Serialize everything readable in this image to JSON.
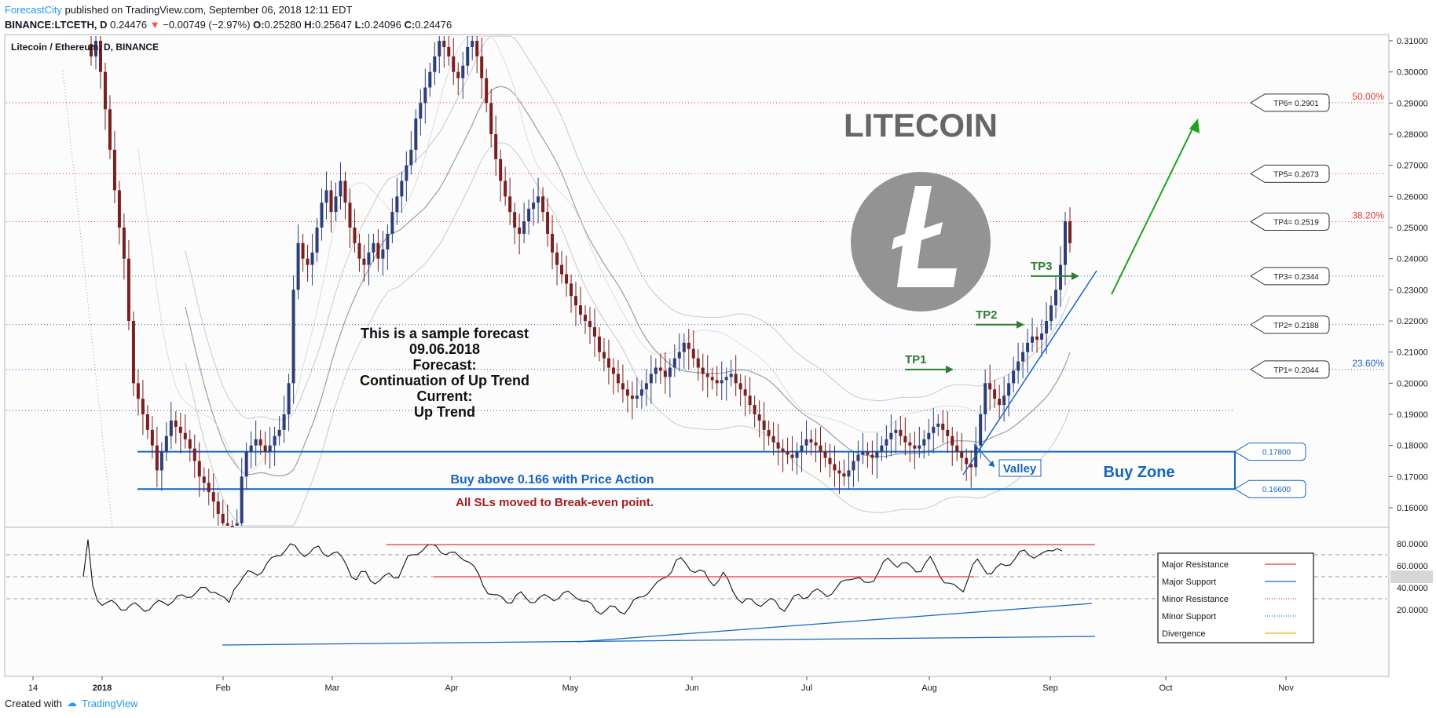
{
  "header": {
    "brand": "ForecastCity",
    "published": " published on TradingView.com, September 06, 2018 12:11 EDT",
    "symbol": "BINANCE:LTCETH, D",
    "last": "0.24476",
    "change": "−0.00749 (−2.97%)",
    "o_label": "O:",
    "o": "0.25280",
    "h_label": "H:",
    "h": "0.25647",
    "l_label": "L:",
    "l": "0.24096",
    "c_label": "C:",
    "c": "0.24476"
  },
  "footer": {
    "created": "Created with",
    "brand": "TradingView"
  },
  "colors": {
    "bull": "#2c3e7a",
    "bear": "#7a1f1f",
    "resistance": "#e53935",
    "support": "#1565c0",
    "green": "#2e7d32",
    "buyzone": "#1565c0",
    "sl": "#a31d1d",
    "fib": "#e53935"
  },
  "chart_data": {
    "type": "candlestick",
    "title": "Litecoin / Ethereum, D, BINANCE",
    "watermark": "LITECOIN",
    "ylim": [
      0.15,
      0.312
    ],
    "y_ticks": [
      "0.31000",
      "0.30000",
      "0.29000",
      "0.28000",
      "0.27000",
      "0.26000",
      "0.25000",
      "0.24000",
      "0.23000",
      "0.22000",
      "0.21000",
      "0.20000",
      "0.19000",
      "0.18000",
      "0.17000",
      "0.16000"
    ],
    "x_ticks": [
      "14",
      "2018",
      "Feb",
      "Mar",
      "Apr",
      "May",
      "Jun",
      "Jul",
      "Aug",
      "Sep",
      "Oct",
      "Nov"
    ],
    "levels": [
      {
        "label": "TP6= 0.2901",
        "value": 0.2901,
        "style": "minor-resistance"
      },
      {
        "label": "TP5= 0.2673",
        "value": 0.2673,
        "style": "minor-resistance"
      },
      {
        "label": "TP4= 0.2519",
        "value": 0.2519,
        "style": "minor-resistance"
      },
      {
        "label": "TP3= 0.2344",
        "value": 0.2344,
        "style": "minor-support"
      },
      {
        "label": "TP2= 0.2188",
        "value": 0.2188,
        "style": "minor-support"
      },
      {
        "label": "TP1= 0.2044",
        "value": 0.2044,
        "style": "minor-support"
      },
      {
        "label": "0.17800",
        "value": 0.178,
        "style": "major-support"
      },
      {
        "label": "0.16600",
        "value": 0.166,
        "style": "major-support"
      }
    ],
    "fib_levels": [
      {
        "label": "50.00%",
        "value": 0.2901
      },
      {
        "label": "38.20%",
        "value": 0.2519
      },
      {
        "label": "23.60%",
        "value": 0.2044
      }
    ],
    "tp_markers": [
      "TP1",
      "TP2",
      "TP3"
    ],
    "annotations": {
      "forecast_lines": [
        "This is a sample forecast",
        "09.06.2018",
        "Forecast:",
        "Continuation of Up Trend",
        "Current:",
        "Up Trend"
      ],
      "buy_text": "Buy above 0.166 with Price Action",
      "sl_text": "All SLs moved to Break-even point.",
      "buy_zone": "Buy Zone",
      "valley": "Valley"
    },
    "close_series": [
      0.305,
      0.31,
      0.3,
      0.288,
      0.275,
      0.262,
      0.25,
      0.24,
      0.22,
      0.2,
      0.195,
      0.19,
      0.185,
      0.18,
      0.172,
      0.178,
      0.183,
      0.188,
      0.186,
      0.184,
      0.182,
      0.179,
      0.175,
      0.17,
      0.168,
      0.165,
      0.162,
      0.158,
      0.155,
      0.153,
      0.152,
      0.155,
      0.17,
      0.178,
      0.18,
      0.182,
      0.18,
      0.178,
      0.18,
      0.183,
      0.185,
      0.19,
      0.2,
      0.23,
      0.245,
      0.24,
      0.238,
      0.242,
      0.25,
      0.258,
      0.262,
      0.255,
      0.26,
      0.265,
      0.258,
      0.25,
      0.245,
      0.24,
      0.238,
      0.242,
      0.245,
      0.24,
      0.243,
      0.248,
      0.255,
      0.26,
      0.265,
      0.27,
      0.275,
      0.285,
      0.29,
      0.295,
      0.3,
      0.305,
      0.31,
      0.308,
      0.305,
      0.3,
      0.298,
      0.302,
      0.308,
      0.31,
      0.305,
      0.298,
      0.29,
      0.28,
      0.272,
      0.265,
      0.26,
      0.255,
      0.25,
      0.248,
      0.252,
      0.256,
      0.258,
      0.26,
      0.255,
      0.248,
      0.242,
      0.238,
      0.235,
      0.232,
      0.228,
      0.225,
      0.222,
      0.22,
      0.218,
      0.215,
      0.21,
      0.208,
      0.205,
      0.203,
      0.2,
      0.198,
      0.196,
      0.195,
      0.196,
      0.198,
      0.2,
      0.203,
      0.205,
      0.204,
      0.202,
      0.205,
      0.208,
      0.21,
      0.213,
      0.211,
      0.208,
      0.205,
      0.203,
      0.202,
      0.201,
      0.2,
      0.201,
      0.202,
      0.203,
      0.2,
      0.198,
      0.196,
      0.193,
      0.19,
      0.188,
      0.185,
      0.183,
      0.181,
      0.179,
      0.178,
      0.177,
      0.176,
      0.178,
      0.18,
      0.182,
      0.181,
      0.18,
      0.178,
      0.176,
      0.174,
      0.172,
      0.171,
      0.17,
      0.172,
      0.175,
      0.177,
      0.178,
      0.177,
      0.176,
      0.178,
      0.18,
      0.182,
      0.184,
      0.185,
      0.183,
      0.181,
      0.18,
      0.179,
      0.18,
      0.182,
      0.184,
      0.186,
      0.187,
      0.185,
      0.183,
      0.18,
      0.178,
      0.176,
      0.174,
      0.173,
      0.18,
      0.19,
      0.2,
      0.198,
      0.195,
      0.193,
      0.196,
      0.2,
      0.204,
      0.207,
      0.21,
      0.213,
      0.215,
      0.214,
      0.216,
      0.22,
      0.225,
      0.23,
      0.238,
      0.252,
      0.245
    ],
    "rsi": {
      "y_ticks": [
        "80.0000",
        "60.0000",
        "50.0000",
        "40.0000",
        "20.0000"
      ],
      "ylim": [
        12,
        92
      ],
      "legend": [
        "Major Resistance",
        "Major Support",
        "Minor Resistance",
        "Minor Support",
        "Divergence"
      ]
    }
  }
}
